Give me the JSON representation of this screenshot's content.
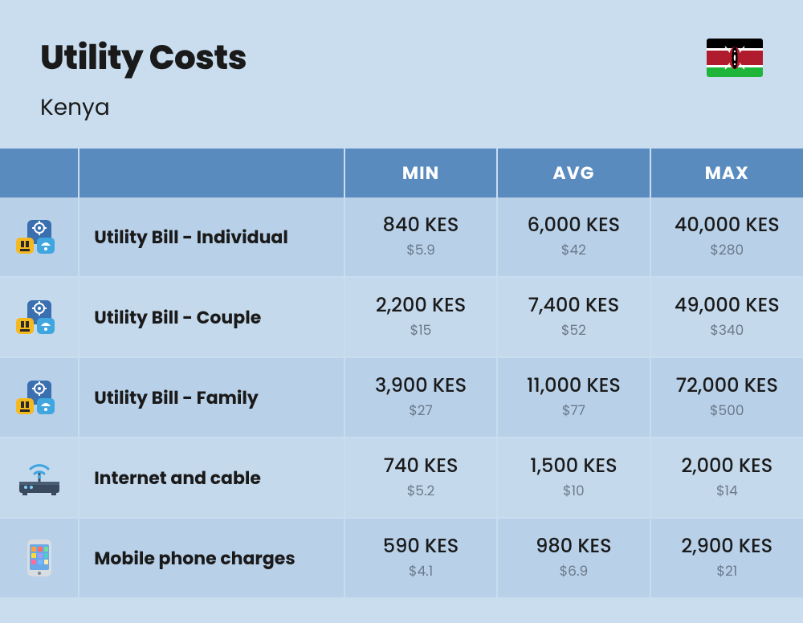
{
  "header": {
    "title": "Utility Costs",
    "subtitle": "Kenya",
    "flag": {
      "stripes": [
        "#000000",
        "#ffffff",
        "#b01c2e",
        "#ffffff",
        "#1eb53a"
      ],
      "shield_outer": "#b01c2e",
      "shield_inner": "#000000",
      "spear": "#ffffff"
    }
  },
  "table": {
    "columns": {
      "min": "MIN",
      "avg": "AVG",
      "max": "MAX"
    },
    "colors": {
      "header_bg": "#5a8bbf",
      "header_fg": "#ffffff",
      "row_even_bg": "#b8d0e8",
      "row_odd_bg": "#c5d9ec",
      "grid": "#c9ddef",
      "kes_color": "#1a1a1a",
      "usd_color": "#6b7a8a"
    },
    "rows": [
      {
        "icon": "utility-individual",
        "label": "Utility Bill - Individual",
        "min_kes": "840 KES",
        "min_usd": "$5.9",
        "avg_kes": "6,000 KES",
        "avg_usd": "$42",
        "max_kes": "40,000 KES",
        "max_usd": "$280"
      },
      {
        "icon": "utility-couple",
        "label": "Utility Bill - Couple",
        "min_kes": "2,200 KES",
        "min_usd": "$15",
        "avg_kes": "7,400 KES",
        "avg_usd": "$52",
        "max_kes": "49,000 KES",
        "max_usd": "$340"
      },
      {
        "icon": "utility-family",
        "label": "Utility Bill - Family",
        "min_kes": "3,900 KES",
        "min_usd": "$27",
        "avg_kes": "11,000 KES",
        "avg_usd": "$77",
        "max_kes": "72,000 KES",
        "max_usd": "$500"
      },
      {
        "icon": "router",
        "label": "Internet and cable",
        "min_kes": "740 KES",
        "min_usd": "$5.2",
        "avg_kes": "1,500 KES",
        "avg_usd": "$10",
        "max_kes": "2,000 KES",
        "max_usd": "$14"
      },
      {
        "icon": "phone",
        "label": "Mobile phone charges",
        "min_kes": "590 KES",
        "min_usd": "$4.1",
        "avg_kes": "980 KES",
        "avg_usd": "$6.9",
        "max_kes": "2,900 KES",
        "max_usd": "$21"
      }
    ]
  }
}
